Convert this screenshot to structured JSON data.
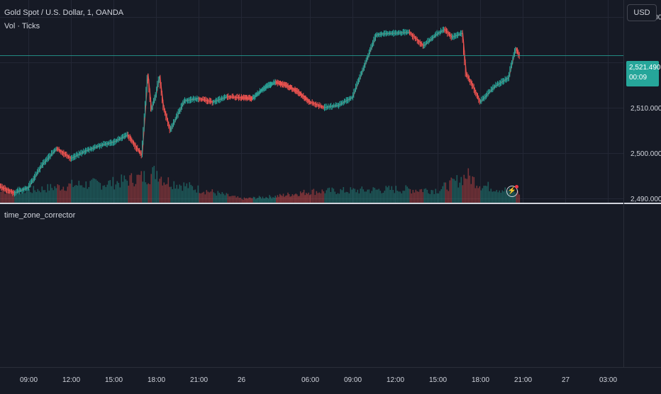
{
  "legend": {
    "symbol_line": "Gold Spot / U.S. Dollar, 1, OANDA",
    "volume_line": "Vol · Ticks",
    "indicator_label": "time_zone_corrector"
  },
  "currency_button": "USD",
  "last_price": {
    "value": "2,521.490",
    "countdown": "00:09"
  },
  "colors": {
    "background": "#161a25",
    "grid": "#232735",
    "up": "#26a69a",
    "down": "#ef5350",
    "text": "#d1d4dc",
    "price_line": "#26a69a",
    "alert_dot": "#f23645"
  },
  "icons": {
    "alert": "lightning-alert-icon"
  },
  "chart_data": [
    {
      "type": "line",
      "title": "Gold Spot / U.S. Dollar, 1, OANDA",
      "xlabel": "",
      "ylabel": "",
      "ylim": [
        2488.9,
        2533.7
      ],
      "x_ticks": [
        "09:00",
        "12:00",
        "15:00",
        "18:00",
        "21:00",
        "26",
        "06:00",
        "09:00",
        "12:00",
        "15:00",
        "18:00",
        "21:00",
        "27",
        "03:00"
      ],
      "y_ticks": [
        2490.0,
        2500.0,
        2510.0,
        2520.0,
        2530.0
      ],
      "y_tick_labels": [
        "2,490.000",
        "2,500.000",
        "2,510.000",
        "",
        "2,530.000"
      ],
      "grid": true,
      "last_value": 2521.49,
      "series": [
        {
          "name": "Gold Spot / U.S. Dollar",
          "x": [
            "06:00",
            "07:00",
            "08:00",
            "09:00",
            "10:00",
            "11:00",
            "12:00",
            "13:00",
            "14:00",
            "15:00",
            "16:00",
            "17:00",
            "17:25",
            "17:40",
            "18:00",
            "18:15",
            "18:30",
            "19:00",
            "20:00",
            "21:00",
            "22:00",
            "23:00",
            "01:00",
            "02:00",
            "03:00",
            "04:00",
            "05:00",
            "06:00",
            "07:00",
            "08:00",
            "09:00",
            "10:00",
            "10:40",
            "11:00",
            "12:00",
            "13:00",
            "14:00",
            "15:00",
            "15:30",
            "16:00",
            "16:45",
            "17:00",
            "17:30",
            "18:00",
            "19:00",
            "20:00",
            "20:30",
            "20:45"
          ],
          "values": [
            2491.8,
            2492.6,
            2491.2,
            2492.4,
            2497.5,
            2501.0,
            2498.8,
            2500.4,
            2501.6,
            2502.4,
            2504.0,
            2499.5,
            2517.5,
            2509.5,
            2513.0,
            2517.0,
            2510.5,
            2505.0,
            2511.5,
            2512.0,
            2511.2,
            2512.4,
            2512.0,
            2514.3,
            2515.6,
            2514.8,
            2513.4,
            2511.2,
            2510.0,
            2510.5,
            2512.3,
            2520.5,
            2526.0,
            2526.2,
            2526.4,
            2526.6,
            2523.6,
            2526.3,
            2527.2,
            2525.5,
            2526.4,
            2517.5,
            2514.7,
            2511.2,
            2514.6,
            2516.6,
            2523.1,
            2521.49
          ]
        }
      ]
    },
    {
      "type": "bar",
      "title": "Vol · Ticks",
      "grid": false,
      "series": [
        {
          "name": "Vol · Ticks",
          "x": [
            "06:00",
            "09:00",
            "12:00",
            "15:00",
            "17:30",
            "18:00",
            "18:30",
            "21:00",
            "26",
            "03:00",
            "06:00",
            "09:00",
            "12:00",
            "15:00",
            "16:30",
            "17:00",
            "18:00",
            "20:45"
          ],
          "values": [
            40,
            38,
            55,
            62,
            85,
            100,
            70,
            42,
            12,
            20,
            35,
            38,
            42,
            40,
            72,
            86,
            55,
            30
          ]
        }
      ]
    }
  ]
}
